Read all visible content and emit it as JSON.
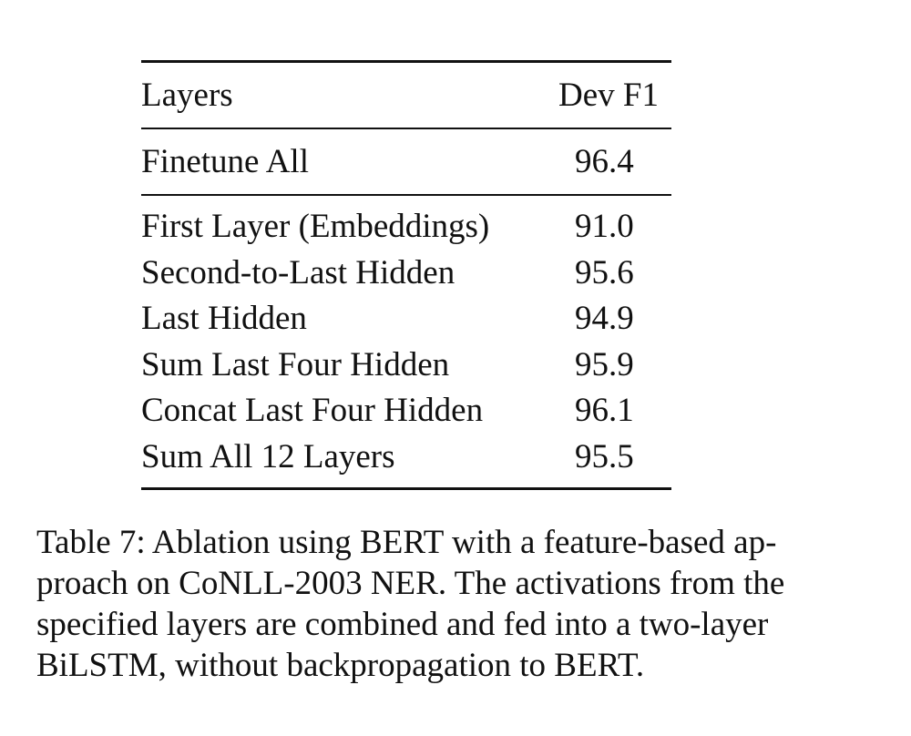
{
  "table": {
    "header": {
      "layers": "Layers",
      "dev_f1": "Dev F1"
    },
    "finetune": {
      "layer": "Finetune All",
      "value": "96.4"
    },
    "rows": [
      {
        "layer": "First Layer (Embeddings)",
        "value": "91.0"
      },
      {
        "layer": "Second-to-Last Hidden",
        "value": "95.6"
      },
      {
        "layer": "Last Hidden",
        "value": "94.9"
      },
      {
        "layer": "Sum Last Four Hidden",
        "value": "95.9"
      },
      {
        "layer": "Concat Last Four Hidden",
        "value": "96.1"
      },
      {
        "layer": "Sum All 12 Layers",
        "value": "95.5"
      }
    ]
  },
  "caption": {
    "lines": [
      "Table 7: Ablation using BERT with a feature-based ap-",
      "proach on CoNLL-2003 NER. The activations from the",
      "specified layers are combined and fed into a two-layer",
      "BiLSTM, without backpropagation to BERT."
    ]
  }
}
